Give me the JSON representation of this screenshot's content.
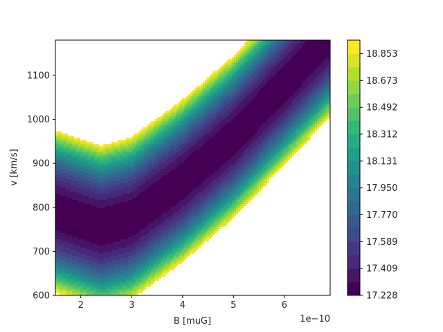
{
  "chart_data": {
    "type": "contourf",
    "xlabel": "B [muG]",
    "ylabel": "v [km/s]",
    "x_offset_label": "1e−10",
    "xlim": [
      1.5e-10,
      6.9e-10
    ],
    "ylim": [
      600,
      1180
    ],
    "x_ticks": [
      2e-10,
      3e-10,
      4e-10,
      5e-10,
      6e-10
    ],
    "x_tick_labels": [
      "2",
      "3",
      "4",
      "5",
      "6"
    ],
    "y_ticks": [
      600,
      700,
      800,
      900,
      1000,
      1100
    ],
    "y_tick_labels": [
      "600",
      "700",
      "800",
      "900",
      "1000",
      "1100"
    ],
    "colormap": "viridis",
    "colorbar": {
      "min": 17.228,
      "max": 18.944,
      "levels": 19,
      "tick_values": [
        17.228,
        17.409,
        17.589,
        17.77,
        17.95,
        18.131,
        18.312,
        18.492,
        18.673,
        18.853
      ],
      "tick_labels": [
        "17.228",
        "17.409",
        "17.589",
        "17.770",
        "17.950",
        "18.131",
        "18.312",
        "18.492",
        "18.673",
        "18.853"
      ]
    },
    "valley": {
      "description_points_B": [
        1.5e-10,
        2.4e-10,
        3e-10,
        4e-10,
        5e-10,
        6e-10,
        6.9e-10
      ],
      "min_v": [
        790,
        755,
        775,
        860,
        960,
        1080,
        1190
      ]
    },
    "grid": false,
    "legend": "none"
  }
}
